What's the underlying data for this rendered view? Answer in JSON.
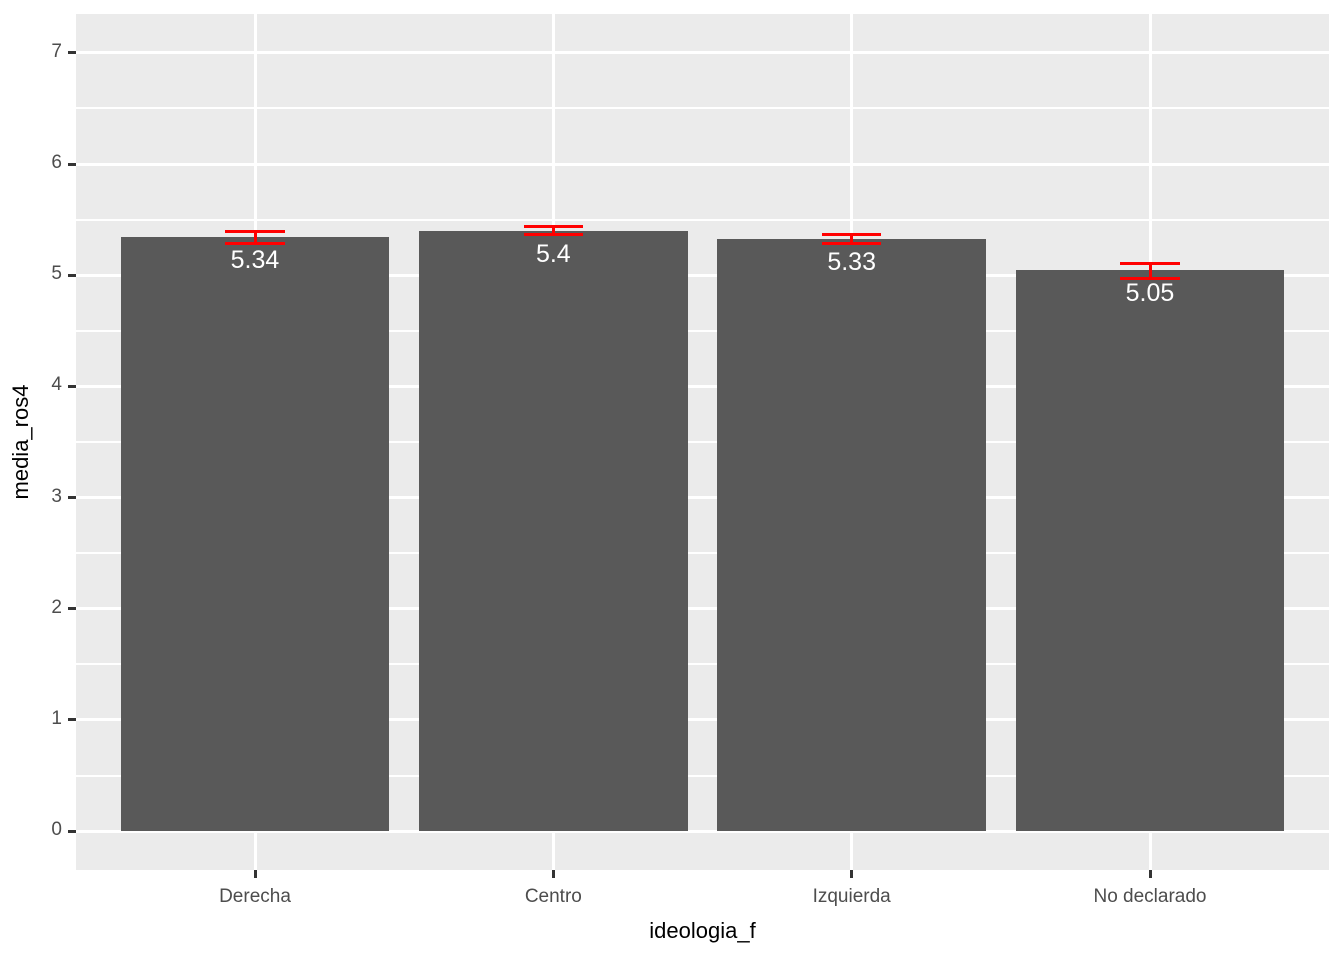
{
  "chart_data": {
    "type": "bar",
    "title": "",
    "xlabel": "ideologia_f",
    "ylabel": "media_ros4",
    "categories": [
      "Derecha",
      "Centro",
      "Izquierda",
      "No declarado"
    ],
    "values": [
      5.34,
      5.4,
      5.33,
      5.05
    ],
    "value_labels": [
      "5.34",
      "5.4",
      "5.33",
      "5.05"
    ],
    "error_bars": [
      {
        "ymin": 5.29,
        "ymax": 5.39
      },
      {
        "ymin": 5.37,
        "ymax": 5.44
      },
      {
        "ymin": 5.29,
        "ymax": 5.37
      },
      {
        "ymin": 4.97,
        "ymax": 5.11
      }
    ],
    "y_ticks": [
      0,
      1,
      2,
      3,
      4,
      5,
      6,
      7
    ],
    "y_minor_ticks": [
      0.5,
      1.5,
      2.5,
      3.5,
      4.5,
      5.5,
      6.5
    ],
    "ylim": [
      0,
      7
    ],
    "ylim_expanded": [
      -0.35,
      7.35
    ],
    "grid": true,
    "legend": "none",
    "bar_width_fraction": 0.9,
    "errorbar_cap_fraction": 0.2,
    "colors": {
      "page_bg": "#FFFFFF",
      "panel_bg": "#EBEBEB",
      "grid_major": "#FFFFFF",
      "grid_minor": "#FFFFFF",
      "bar": "#595959",
      "error_bar": "#FF0000",
      "bar_label": "#FFFFFF",
      "axis_text": "#4D4D4D",
      "axis_title": "#000000",
      "tick_mark": "#333333"
    }
  }
}
